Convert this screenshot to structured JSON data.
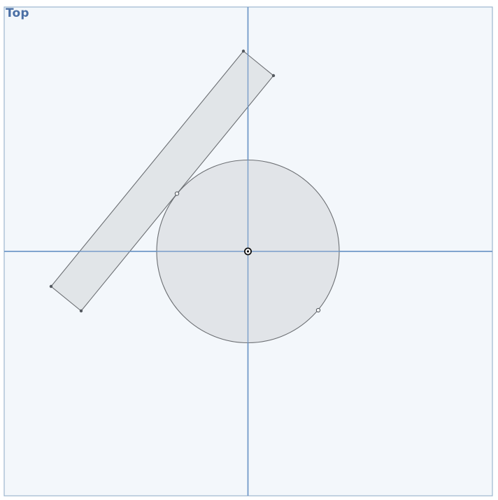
{
  "viewport": {
    "view_label": "Top"
  },
  "colors": {
    "background": "#f3f7fb",
    "frame": "#9db6cf",
    "axis": "#6f97c7",
    "shape_fill": "#dfe2e6",
    "shape_stroke": "#6b6e72",
    "vertex": "#555a60",
    "origin": "#111111"
  },
  "shapes": [
    {
      "kind": "rectangle",
      "name": "rotated-rectangle"
    },
    {
      "kind": "circle",
      "name": "circle"
    }
  ]
}
